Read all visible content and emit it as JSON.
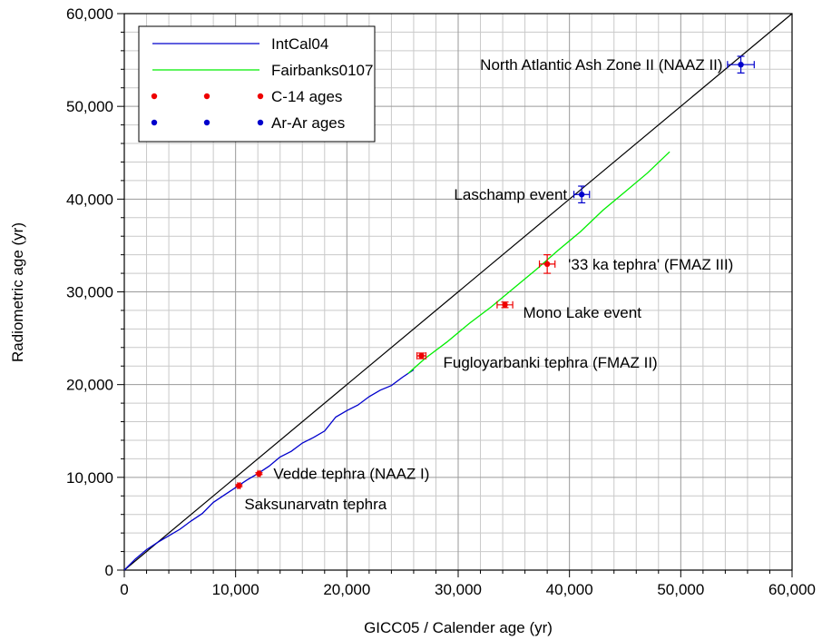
{
  "chart_data": {
    "type": "scatter",
    "title": "",
    "xlabel": "GICC05 / Calender age (yr)",
    "ylabel": "Radiometric age (yr)",
    "xlim": [
      0,
      60000
    ],
    "ylim": [
      0,
      60000
    ],
    "x_ticks": [
      "0",
      "10,000",
      "20,000",
      "30,000",
      "40,000",
      "50,000",
      "60,000"
    ],
    "y_ticks": [
      "0",
      "10,000",
      "20,000",
      "30,000",
      "40,000",
      "50,000",
      "60,000"
    ],
    "grid": true,
    "legend_position": "top-left",
    "reference_line": {
      "from": [
        0,
        0
      ],
      "to": [
        60000,
        60000
      ],
      "color": "#000000"
    },
    "series": [
      {
        "name": "IntCal04",
        "kind": "line",
        "color": "#0000cc",
        "x": [
          0,
          1000,
          2000,
          3000,
          4000,
          5000,
          6000,
          7000,
          8000,
          9000,
          10000,
          11000,
          12000,
          13000,
          14000,
          15000,
          16000,
          17000,
          18000,
          19000,
          20000,
          21000,
          22000,
          23000,
          24000,
          25000,
          26000
        ],
        "y": [
          0,
          1200,
          2200,
          3000,
          3700,
          4400,
          5300,
          6100,
          7300,
          8100,
          8900,
          9700,
          10400,
          11200,
          12200,
          12800,
          13700,
          14300,
          15000,
          16500,
          17200,
          17800,
          18700,
          19400,
          19900,
          20800,
          21600
        ]
      },
      {
        "name": "Fairbanks0107",
        "kind": "line",
        "color": "#00ee00",
        "x": [
          25500,
          27000,
          29000,
          31000,
          33000,
          35000,
          37000,
          39000,
          41000,
          43000,
          45000,
          47000,
          49000
        ],
        "y": [
          21200,
          22800,
          24600,
          26600,
          28400,
          30400,
          32400,
          34500,
          36500,
          38800,
          40800,
          42800,
          45100
        ]
      },
      {
        "name": "C-14 ages",
        "kind": "points",
        "color": "#ee0000",
        "points": [
          {
            "label": "Saksunarvatn tephra",
            "x": 10300,
            "y": 9100,
            "xerr": 100,
            "yerr": 100
          },
          {
            "label": "Vedde tephra (NAAZ I)",
            "x": 12100,
            "y": 10400,
            "xerr": 100,
            "yerr": 100
          },
          {
            "label": "Fugloyarbanki tephra (FMAZ II)",
            "x": 26700,
            "y": 23100,
            "xerr": 400,
            "yerr": 300
          },
          {
            "label": "Mono Lake event",
            "x": 34200,
            "y": 28600,
            "xerr": 700,
            "yerr": 300
          },
          {
            "label": "'33 ka tephra' (FMAZ III)",
            "x": 38000,
            "y": 33000,
            "xerr": 700,
            "yerr": 1000
          }
        ]
      },
      {
        "name": "Ar-Ar ages",
        "kind": "points",
        "color": "#0000cc",
        "points": [
          {
            "label": "Laschamp event",
            "x": 41100,
            "y": 40500,
            "xerr": 700,
            "yerr": 900
          },
          {
            "label": "North Atlantic Ash Zone II (NAAZ II)",
            "x": 55400,
            "y": 54500,
            "xerr": 1200,
            "yerr": 900
          }
        ]
      }
    ]
  }
}
